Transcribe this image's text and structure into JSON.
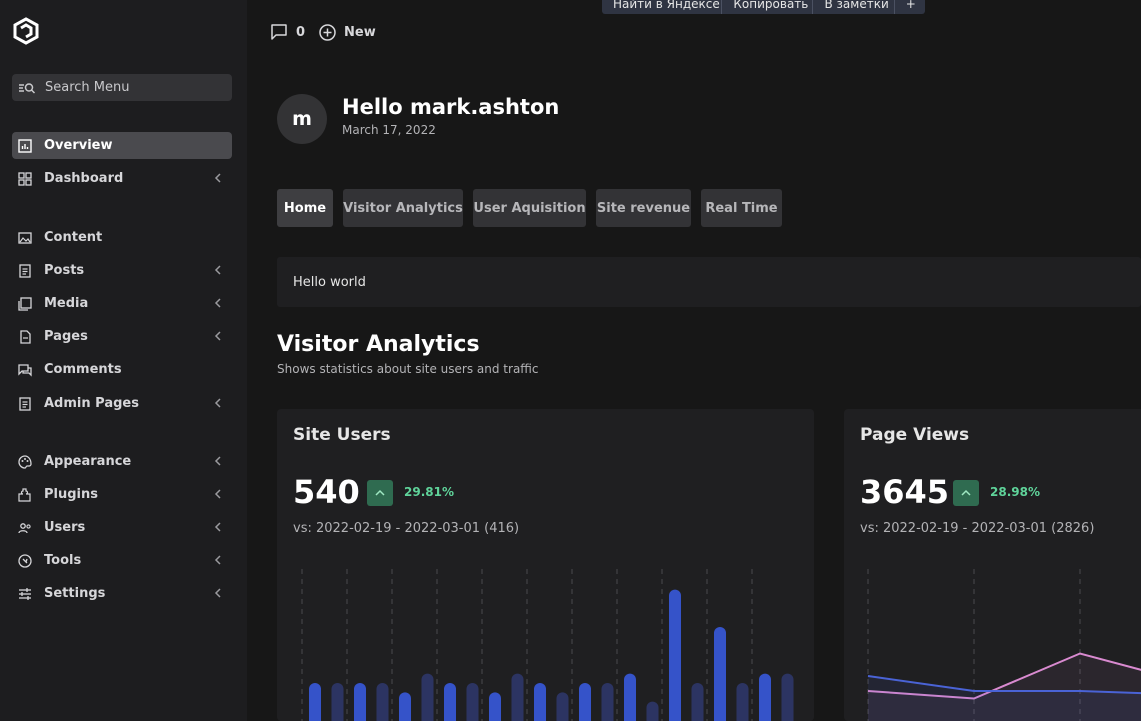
{
  "sidebar": {
    "search_placeholder": "Search Menu",
    "items": [
      {
        "label": "Overview",
        "icon": "chart-icon",
        "active": true,
        "chevron": false
      },
      {
        "label": "Dashboard",
        "icon": "grid-icon",
        "active": false,
        "chevron": true
      },
      {
        "label": "Content",
        "icon": "image-icon",
        "active": false,
        "chevron": false
      },
      {
        "label": "Posts",
        "icon": "document-icon",
        "active": false,
        "chevron": true
      },
      {
        "label": "Media",
        "icon": "media-icon",
        "active": false,
        "chevron": true
      },
      {
        "label": "Pages",
        "icon": "page-icon",
        "active": false,
        "chevron": true
      },
      {
        "label": "Comments",
        "icon": "comment-icon",
        "active": false,
        "chevron": false
      },
      {
        "label": "Admin Pages",
        "icon": "document-icon",
        "active": false,
        "chevron": true
      },
      {
        "label": "Appearance",
        "icon": "palette-icon",
        "active": false,
        "chevron": true
      },
      {
        "label": "Plugins",
        "icon": "plugin-icon",
        "active": false,
        "chevron": true
      },
      {
        "label": "Users",
        "icon": "users-icon",
        "active": false,
        "chevron": true
      },
      {
        "label": "Tools",
        "icon": "tools-icon",
        "active": false,
        "chevron": true
      },
      {
        "label": "Settings",
        "icon": "sliders-icon",
        "active": false,
        "chevron": true
      }
    ]
  },
  "topbar": {
    "comments_count": "0",
    "new_label": "New"
  },
  "popup": {
    "items": [
      "Найти в Яндексе",
      "Копировать",
      "В заметки",
      "+"
    ]
  },
  "greeting": {
    "avatar_letter": "m",
    "title": "Hello mark.ashton",
    "date": "March 17, 2022"
  },
  "tabs": [
    {
      "label": "Home",
      "active": true
    },
    {
      "label": "Visitor Analytics",
      "active": false
    },
    {
      "label": "User Aquisition",
      "active": false
    },
    {
      "label": "Site revenue",
      "active": false
    },
    {
      "label": "Real Time",
      "active": false
    }
  ],
  "panel": {
    "text": "Hello world"
  },
  "section": {
    "title": "Visitor Analytics",
    "subtitle": "Shows statistics about site users and traffic"
  },
  "cards": [
    {
      "title": "Site Users",
      "value": "540",
      "delta": "29.81%",
      "compare": "vs: 2022-02-19 - 2022-03-01 (416)"
    },
    {
      "title": "Page Views",
      "value": "3645",
      "delta": "28.98%",
      "compare": "vs: 2022-02-19 - 2022-03-01 (2826)"
    }
  ],
  "colors": {
    "accent_bar": "#3553c9",
    "prior_bar": "#2c3462",
    "positive": "#5fd39a",
    "line_current": "#d98ad0",
    "line_prior": "#4a63d6"
  },
  "chart_data": [
    {
      "type": "bar",
      "series": [
        {
          "values": [
            3,
            3,
            3,
            3,
            2,
            4,
            3,
            3,
            2,
            4,
            3,
            2,
            3,
            3,
            4,
            1,
            13,
            3,
            9,
            3,
            4,
            4
          ]
        }
      ],
      "ylim": [
        0,
        15
      ]
    },
    {
      "type": "line",
      "series": [
        {
          "values": [
            2,
            1.5,
            4.5,
            3
          ]
        },
        {
          "values": [
            3,
            2,
            2,
            1.8
          ]
        }
      ],
      "ylim": [
        0,
        10
      ]
    }
  ]
}
